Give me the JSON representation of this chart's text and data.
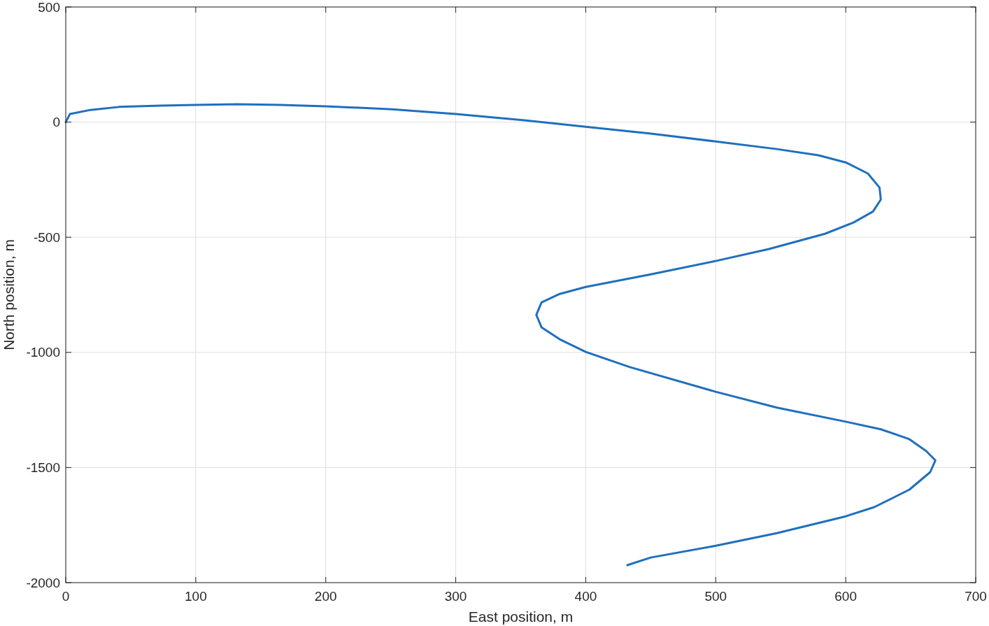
{
  "chart_data": {
    "type": "line",
    "xlabel": "East position, m",
    "ylabel": "North position, m",
    "xlim": [
      0,
      700
    ],
    "ylim": [
      -2000,
      500
    ],
    "xticks": [
      0,
      100,
      200,
      300,
      400,
      500,
      600,
      700
    ],
    "yticks": [
      -2000,
      -1500,
      -1000,
      -500,
      0,
      500
    ],
    "grid": true,
    "series": [
      {
        "color": "#1f6fbf",
        "x": [
          0,
          3.2,
          19,
          41,
          73,
          100,
          132,
          165,
          200,
          251,
          300,
          353,
          400,
          450,
          500,
          547,
          579,
          600,
          617,
          626,
          627,
          621,
          606,
          584,
          541,
          500,
          450,
          400,
          380,
          366,
          362,
          366,
          380,
          400,
          434,
          500,
          547,
          600,
          627,
          649,
          662,
          669,
          665,
          649,
          622,
          600,
          547,
          500,
          450,
          432
        ],
        "values": [
          0,
          35,
          53,
          66,
          72,
          75,
          78,
          75,
          69,
          56,
          35,
          8,
          -20,
          -50,
          -84,
          -117,
          -144,
          -175,
          -223,
          -284,
          -336,
          -388,
          -436,
          -485,
          -551,
          -603,
          -661,
          -716,
          -746,
          -783,
          -837,
          -891,
          -943,
          -998,
          -1064,
          -1171,
          -1240,
          -1301,
          -1334,
          -1377,
          -1429,
          -1469,
          -1520,
          -1596,
          -1672,
          -1712,
          -1785,
          -1840,
          -1891,
          -1924
        ]
      }
    ]
  }
}
